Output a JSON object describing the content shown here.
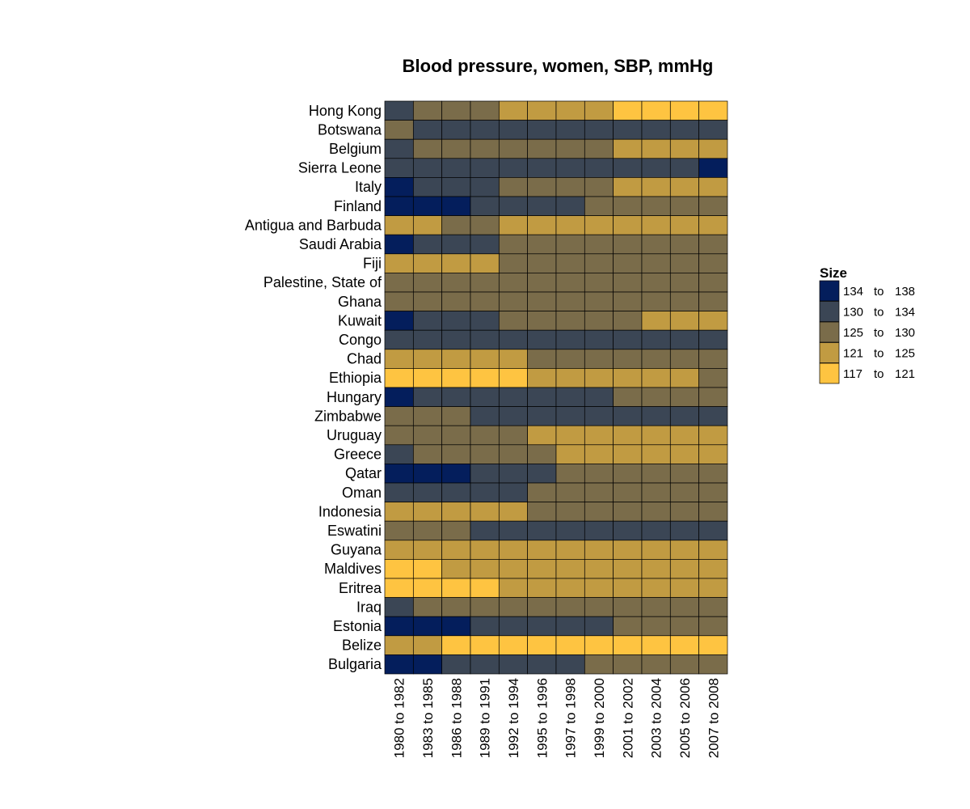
{
  "chart_data": {
    "type": "heatmap",
    "title": "Blood pressure, women, SBP, mmHg",
    "xlabel": "",
    "ylabel": "",
    "rows": [
      "Hong Kong",
      "Botswana",
      "Belgium",
      "Sierra Leone",
      "Italy",
      "Finland",
      "Antigua and Barbuda",
      "Saudi Arabia",
      "Fiji",
      "Palestine, State of",
      "Ghana",
      "Kuwait",
      "Congo",
      "Chad",
      "Ethiopia",
      "Hungary",
      "Zimbabwe",
      "Uruguay",
      "Greece",
      "Qatar",
      "Oman",
      "Indonesia",
      "Eswatini",
      "Guyana",
      "Maldives",
      "Eritrea",
      "Iraq",
      "Estonia",
      "Belize",
      "Bulgaria"
    ],
    "columns": [
      "1980 to 1982",
      "1983 to 1985",
      "1986 to 1988",
      "1989 to 1991",
      "1992 to 1994",
      "1995 to 1996",
      "1997 to 1998",
      "1999 to 2000",
      "2001 to 2002",
      "2003 to 2004",
      "2005 to 2006",
      "2007 to 2008"
    ],
    "bins": [
      {
        "label_low": "134",
        "label_to": "to",
        "label_high": "138",
        "color": "#041E5C"
      },
      {
        "label_low": "130",
        "label_to": "to",
        "label_high": "134",
        "color": "#3B4655"
      },
      {
        "label_low": "125",
        "label_to": "to",
        "label_high": "130",
        "color": "#7A6C4A"
      },
      {
        "label_low": "121",
        "label_to": "to",
        "label_high": "125",
        "color": "#C19B42"
      },
      {
        "label_low": "117",
        "label_to": "to",
        "label_high": "121",
        "color": "#FEC441"
      }
    ],
    "cell_bins": [
      [
        1,
        2,
        2,
        2,
        3,
        3,
        3,
        3,
        4,
        4,
        4,
        4
      ],
      [
        2,
        1,
        1,
        1,
        1,
        1,
        1,
        1,
        1,
        1,
        1,
        1
      ],
      [
        1,
        2,
        2,
        2,
        2,
        2,
        2,
        2,
        3,
        3,
        3,
        3
      ],
      [
        1,
        1,
        1,
        1,
        1,
        1,
        1,
        1,
        1,
        1,
        1,
        0
      ],
      [
        0,
        1,
        1,
        1,
        2,
        2,
        2,
        2,
        3,
        3,
        3,
        3
      ],
      [
        0,
        0,
        0,
        1,
        1,
        1,
        1,
        2,
        2,
        2,
        2,
        2
      ],
      [
        3,
        3,
        2,
        2,
        3,
        3,
        3,
        3,
        3,
        3,
        3,
        3
      ],
      [
        0,
        1,
        1,
        1,
        2,
        2,
        2,
        2,
        2,
        2,
        2,
        2
      ],
      [
        3,
        3,
        3,
        3,
        2,
        2,
        2,
        2,
        2,
        2,
        2,
        2
      ],
      [
        2,
        2,
        2,
        2,
        2,
        2,
        2,
        2,
        2,
        2,
        2,
        2
      ],
      [
        2,
        2,
        2,
        2,
        2,
        2,
        2,
        2,
        2,
        2,
        2,
        2
      ],
      [
        0,
        1,
        1,
        1,
        2,
        2,
        2,
        2,
        2,
        3,
        3,
        3
      ],
      [
        1,
        1,
        1,
        1,
        1,
        1,
        1,
        1,
        1,
        1,
        1,
        1
      ],
      [
        3,
        3,
        3,
        3,
        3,
        2,
        2,
        2,
        2,
        2,
        2,
        2
      ],
      [
        4,
        4,
        4,
        4,
        4,
        3,
        3,
        3,
        3,
        3,
        3,
        2
      ],
      [
        0,
        1,
        1,
        1,
        1,
        1,
        1,
        1,
        2,
        2,
        2,
        2
      ],
      [
        2,
        2,
        2,
        1,
        1,
        1,
        1,
        1,
        1,
        1,
        1,
        1
      ],
      [
        2,
        2,
        2,
        2,
        2,
        3,
        3,
        3,
        3,
        3,
        3,
        3
      ],
      [
        1,
        2,
        2,
        2,
        2,
        2,
        3,
        3,
        3,
        3,
        3,
        3
      ],
      [
        0,
        0,
        0,
        1,
        1,
        1,
        2,
        2,
        2,
        2,
        2,
        2
      ],
      [
        1,
        1,
        1,
        1,
        1,
        2,
        2,
        2,
        2,
        2,
        2,
        2
      ],
      [
        3,
        3,
        3,
        3,
        3,
        2,
        2,
        2,
        2,
        2,
        2,
        2
      ],
      [
        2,
        2,
        2,
        1,
        1,
        1,
        1,
        1,
        1,
        1,
        1,
        1
      ],
      [
        3,
        3,
        3,
        3,
        3,
        3,
        3,
        3,
        3,
        3,
        3,
        3
      ],
      [
        4,
        4,
        3,
        3,
        3,
        3,
        3,
        3,
        3,
        3,
        3,
        3
      ],
      [
        4,
        4,
        4,
        4,
        3,
        3,
        3,
        3,
        3,
        3,
        3,
        3
      ],
      [
        1,
        2,
        2,
        2,
        2,
        2,
        2,
        2,
        2,
        2,
        2,
        2
      ],
      [
        0,
        0,
        0,
        1,
        1,
        1,
        1,
        1,
        2,
        2,
        2,
        2
      ],
      [
        3,
        3,
        4,
        4,
        4,
        4,
        4,
        4,
        4,
        4,
        4,
        4
      ],
      [
        0,
        0,
        1,
        1,
        1,
        1,
        1,
        2,
        2,
        2,
        2,
        2
      ]
    ],
    "legend": {
      "title": "Size",
      "position": "right"
    },
    "grid": false
  }
}
